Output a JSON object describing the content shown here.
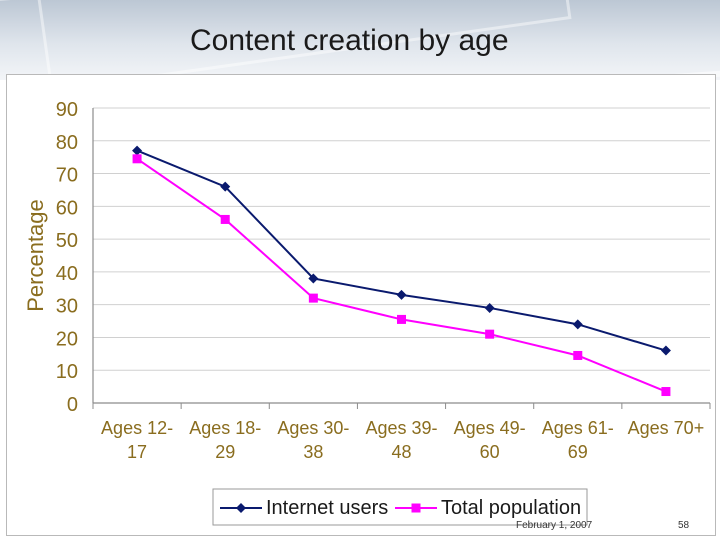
{
  "slide": {
    "title": "Content creation by age",
    "footer_date": "February 1, 2007",
    "page_number": "58"
  },
  "colors": {
    "internet": "#0a1a6e",
    "total": "#ff00ff",
    "axis_text": "#8a6d1f",
    "grid": "#d0d0d0"
  },
  "chart_data": {
    "type": "line",
    "title": "",
    "xlabel": "",
    "ylabel": "Percentage",
    "ylim": [
      0,
      90
    ],
    "yticks": [
      0,
      10,
      20,
      30,
      40,
      50,
      60,
      70,
      80,
      90
    ],
    "grid": true,
    "legend": "bottom",
    "categories": [
      [
        "Ages 12-",
        "17"
      ],
      [
        "Ages 18-",
        "29"
      ],
      [
        "Ages 30-",
        "38"
      ],
      [
        "Ages 39-",
        "48"
      ],
      [
        "Ages 49-",
        "60"
      ],
      [
        "Ages 61-",
        "69"
      ],
      [
        "Ages 70+"
      ]
    ],
    "series": [
      {
        "name": "Internet users",
        "values": [
          77,
          66,
          38,
          33,
          29,
          24,
          16
        ],
        "marker": "diamond"
      },
      {
        "name": "Total population",
        "values": [
          74.5,
          56,
          32,
          25.5,
          21,
          14.5,
          3.5
        ],
        "marker": "square"
      }
    ]
  }
}
